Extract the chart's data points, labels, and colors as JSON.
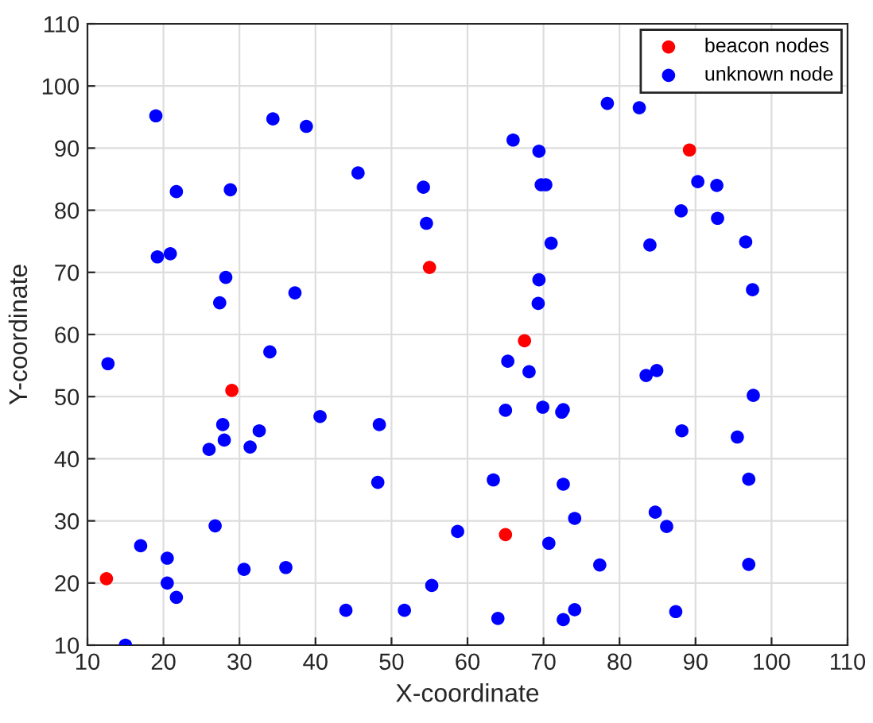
{
  "chart_data": {
    "type": "scatter",
    "xlabel": "X-coordinate",
    "ylabel": "Y-coordinate",
    "xlim": [
      10,
      110
    ],
    "ylim": [
      10,
      110
    ],
    "xticks": [
      10,
      20,
      30,
      40,
      50,
      60,
      70,
      80,
      90,
      100,
      110
    ],
    "yticks": [
      10,
      20,
      30,
      40,
      50,
      60,
      70,
      80,
      90,
      100,
      110
    ],
    "grid": true,
    "legend": "top right",
    "marker": "circle",
    "series": [
      {
        "name": "beacon nodes",
        "color": "#ff0000",
        "x": [
          12.5,
          29,
          55,
          67.5,
          89.2,
          65
        ],
        "values": [
          20.7,
          51,
          70.8,
          59,
          89.7,
          27.8
        ]
      },
      {
        "name": "unknown node",
        "color": "#0000ff",
        "x": [
          15,
          12.7,
          17,
          20.5,
          20.5,
          21.7,
          19,
          21.7,
          19.2,
          20.9,
          28.8,
          28.2,
          27.4,
          26,
          27.8,
          28,
          26.8,
          30.6,
          31.4,
          32.6,
          34,
          34.4,
          38.8,
          37.3,
          40.6,
          36.1,
          45.6,
          48.4,
          48.2,
          44,
          51.7,
          55.3,
          54.2,
          54.6,
          58.7,
          63.4,
          64,
          65.3,
          68.1,
          65,
          69.9,
          72.4,
          72.6,
          72.6,
          74.1,
          70.7,
          77.4,
          74.1,
          72.6,
          87.4,
          97,
          97,
          84.7,
          86.2,
          88.2,
          95.5,
          97.6,
          83.5,
          84.9,
          66,
          69.4,
          69.7,
          70.3,
          71,
          69.4,
          69.3,
          78.4,
          82.6,
          88.1,
          84,
          90.3,
          92.8,
          92.9,
          96.6,
          97.5
        ],
        "values": [
          10,
          55.3,
          26,
          24,
          20,
          17.7,
          95.2,
          83,
          72.5,
          73,
          83.3,
          69.2,
          65.1,
          41.5,
          45.5,
          43,
          29.2,
          22.2,
          41.9,
          44.5,
          57.2,
          94.7,
          93.5,
          66.7,
          46.8,
          22.5,
          86,
          45.5,
          36.2,
          15.6,
          15.6,
          19.6,
          83.7,
          77.9,
          28.3,
          36.6,
          14.3,
          55.7,
          54,
          47.8,
          48.3,
          47.5,
          47.9,
          35.9,
          30.4,
          26.4,
          22.9,
          15.7,
          14.1,
          15.4,
          23,
          36.7,
          31.4,
          29.1,
          44.5,
          43.5,
          50.2,
          53.4,
          54.2,
          91.3,
          89.5,
          84.1,
          84.1,
          74.7,
          68.8,
          65,
          97.2,
          96.5,
          79.9,
          74.4,
          84.6,
          84,
          78.7,
          74.9,
          67.2
        ]
      }
    ]
  }
}
